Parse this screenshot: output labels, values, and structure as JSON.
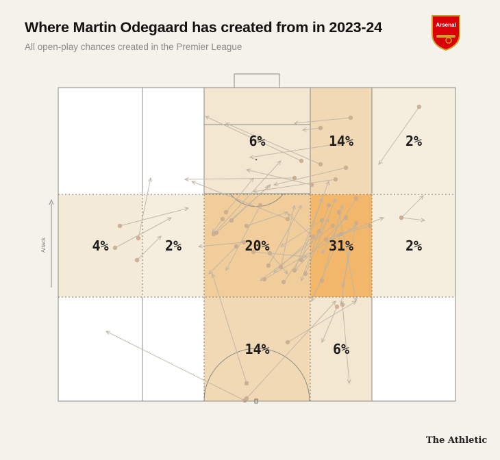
{
  "header": {
    "title": "Where Martin Odegaard has created from in 2023-24",
    "subtitle": "All open-play chances created in the Premier League"
  },
  "crest": {
    "text": "Arsenal",
    "color": "#db0007",
    "gold": "#c9a227"
  },
  "brand": "The Athletic",
  "attack_label": "Attack",
  "colors": {
    "background": "#f4f2ea",
    "pitch_line": "#8a8a86",
    "arrow": "#bcb4a6",
    "dot": "#c9ab90",
    "zone_scale": [
      "#f6f1e4",
      "#f1dfc4",
      "#f2b76a"
    ]
  },
  "chart_data": {
    "type": "heatmap",
    "title": "Where Martin Odegaard has created from in 2023-24",
    "subtitle": "All open-play chances created in the Premier League",
    "metric": "share of open-play chances created (%)",
    "direction": "Attack (upwards)",
    "zones": [
      {
        "zone": "left-channel-final-third",
        "value": null
      },
      {
        "zone": "left-halfspace-final-third",
        "value": null
      },
      {
        "zone": "central-box",
        "value": 6
      },
      {
        "zone": "right-halfspace-box",
        "value": 14
      },
      {
        "zone": "right-channel-final-third",
        "value": 2
      },
      {
        "zone": "left-channel-middle",
        "value": 4
      },
      {
        "zone": "left-halfspace-middle",
        "value": 2
      },
      {
        "zone": "central-middle",
        "value": 20
      },
      {
        "zone": "right-halfspace-middle",
        "value": 31
      },
      {
        "zone": "right-channel-middle",
        "value": 2
      },
      {
        "zone": "left-channel-own-half",
        "value": null
      },
      {
        "zone": "left-halfspace-own-half",
        "value": null
      },
      {
        "zone": "central-own-half",
        "value": 14
      },
      {
        "zone": "right-halfspace-own-half",
        "value": 6
      },
      {
        "zone": "right-channel-own-half",
        "value": null
      }
    ]
  }
}
